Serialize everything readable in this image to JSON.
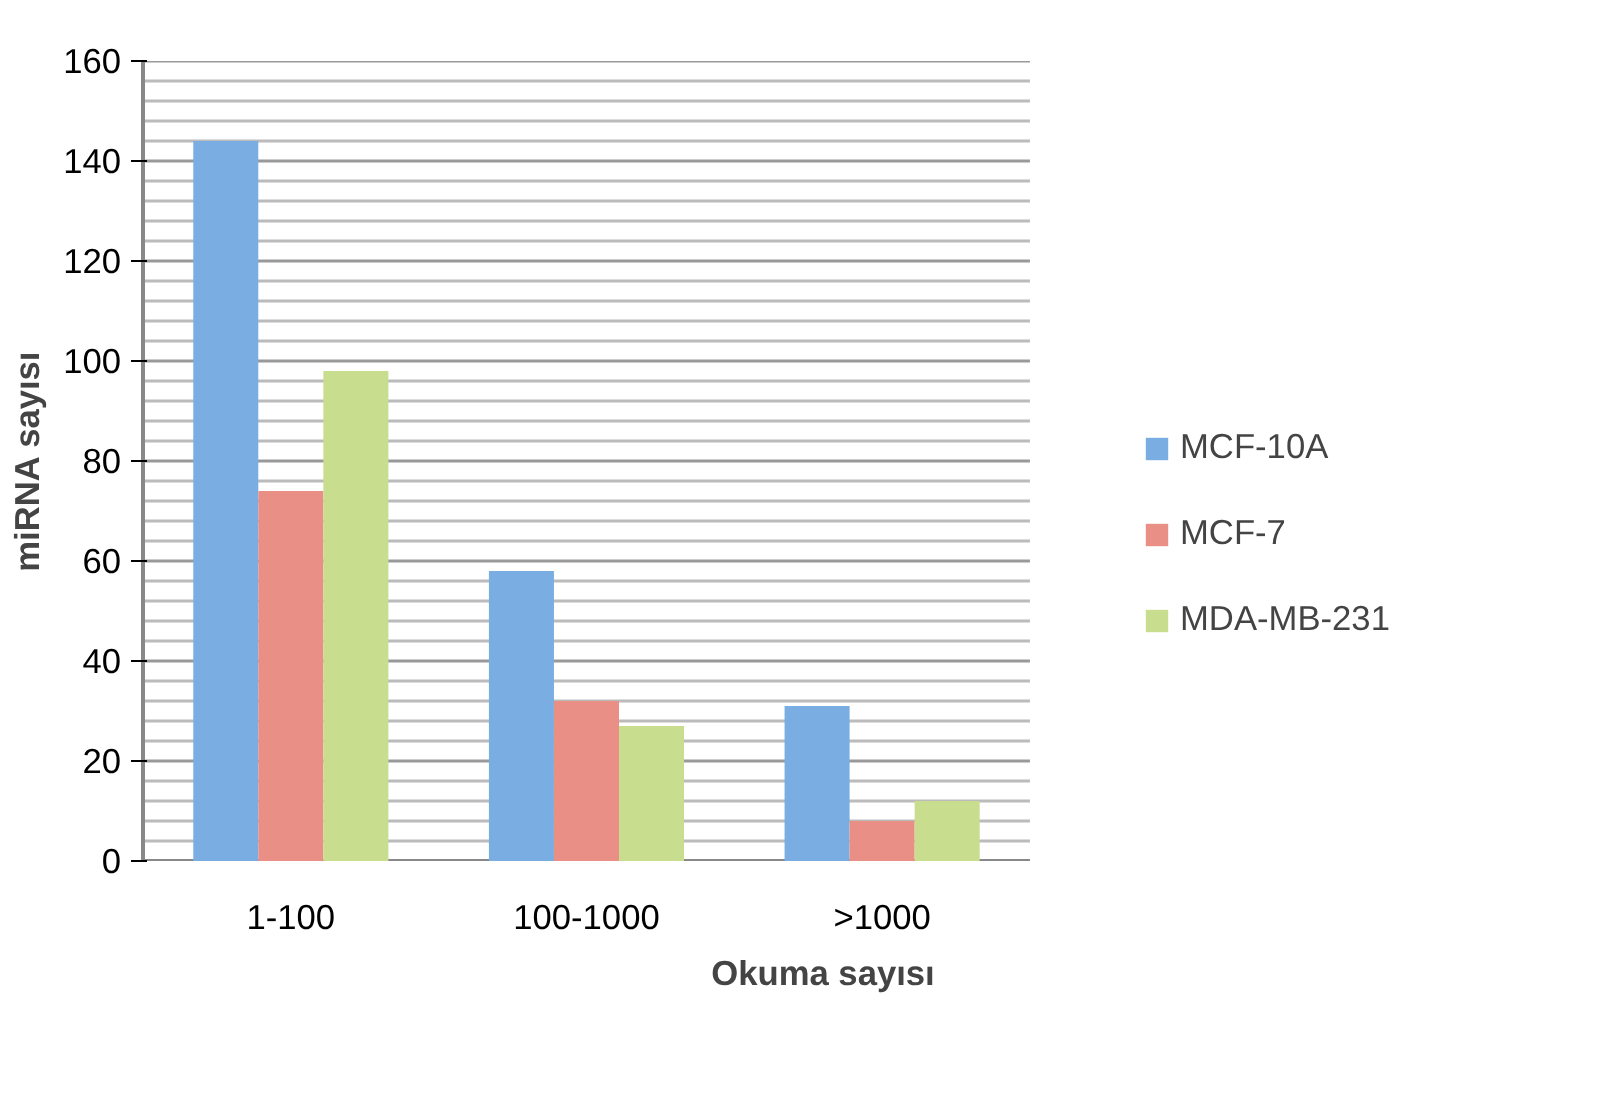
{
  "chart_data": {
    "type": "bar",
    "xlabel": "Okuma sayısı",
    "ylabel": "miRNA sayısı",
    "categories": [
      "1-100",
      "100-1000",
      ">1000"
    ],
    "series": [
      {
        "name": "MCF-10A",
        "color": "#7aaee2",
        "values": [
          144,
          58,
          31
        ]
      },
      {
        "name": "MCF-7",
        "color": "#ea8f85",
        "values": [
          74,
          32,
          8
        ]
      },
      {
        "name": "MDA-MB-231",
        "color": "#c9dd8e",
        "values": [
          98,
          27,
          12
        ]
      }
    ],
    "ylim": [
      0,
      160
    ],
    "yticks": [
      0,
      20,
      40,
      60,
      80,
      100,
      120,
      140,
      160
    ],
    "grid": "y",
    "legend": "right"
  }
}
